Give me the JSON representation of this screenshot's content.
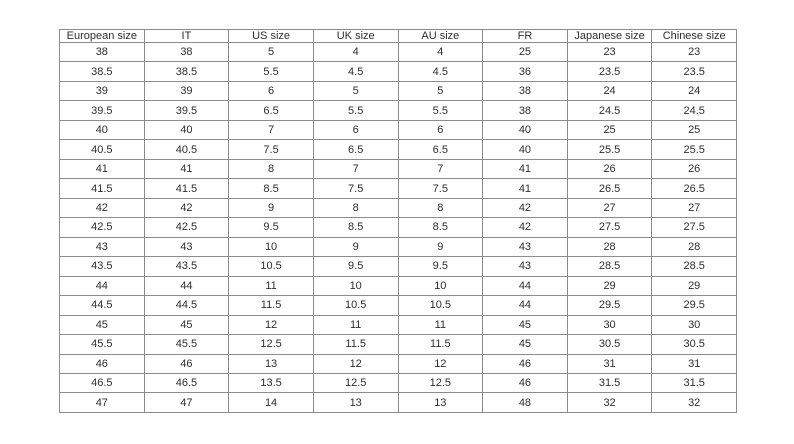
{
  "table": {
    "headers": [
      "European size",
      "IT",
      "US size",
      "UK size",
      "AU size",
      "FR",
      "Japanese size",
      "Chinese size"
    ],
    "rows": [
      [
        "38",
        "38",
        "5",
        "4",
        "4",
        "25",
        "23",
        "23"
      ],
      [
        "38.5",
        "38.5",
        "5.5",
        "4.5",
        "4.5",
        "36",
        "23.5",
        "23.5"
      ],
      [
        "39",
        "39",
        "6",
        "5",
        "5",
        "38",
        "24",
        "24"
      ],
      [
        "39.5",
        "39.5",
        "6.5",
        "5.5",
        "5.5",
        "38",
        "24.5",
        "24.5"
      ],
      [
        "40",
        "40",
        "7",
        "6",
        "6",
        "40",
        "25",
        "25"
      ],
      [
        "40.5",
        "40.5",
        "7.5",
        "6.5",
        "6.5",
        "40",
        "25.5",
        "25.5"
      ],
      [
        "41",
        "41",
        "8",
        "7",
        "7",
        "41",
        "26",
        "26"
      ],
      [
        "41.5",
        "41.5",
        "8.5",
        "7.5",
        "7.5",
        "41",
        "26.5",
        "26.5"
      ],
      [
        "42",
        "42",
        "9",
        "8",
        "8",
        "42",
        "27",
        "27"
      ],
      [
        "42.5",
        "42.5",
        "9.5",
        "8.5",
        "8.5",
        "42",
        "27.5",
        "27.5"
      ],
      [
        "43",
        "43",
        "10",
        "9",
        "9",
        "43",
        "28",
        "28"
      ],
      [
        "43.5",
        "43.5",
        "10.5",
        "9.5",
        "9.5",
        "43",
        "28.5",
        "28.5"
      ],
      [
        "44",
        "44",
        "11",
        "10",
        "10",
        "44",
        "29",
        "29"
      ],
      [
        "44.5",
        "44.5",
        "11.5",
        "10.5",
        "10.5",
        "44",
        "29.5",
        "29.5"
      ],
      [
        "45",
        "45",
        "12",
        "11",
        "11",
        "45",
        "30",
        "30"
      ],
      [
        "45.5",
        "45.5",
        "12.5",
        "11.5",
        "11.5",
        "45",
        "30.5",
        "30.5"
      ],
      [
        "46",
        "46",
        "13",
        "12",
        "12",
        "46",
        "31",
        "31"
      ],
      [
        "46.5",
        "46.5",
        "13.5",
        "12.5",
        "12.5",
        "46",
        "31.5",
        "31.5"
      ],
      [
        "47",
        "47",
        "14",
        "13",
        "13",
        "48",
        "32",
        "32"
      ]
    ]
  },
  "colors": {
    "background": "#ffffff",
    "border": "#8c8c8c",
    "text": "#2e2e2e"
  }
}
